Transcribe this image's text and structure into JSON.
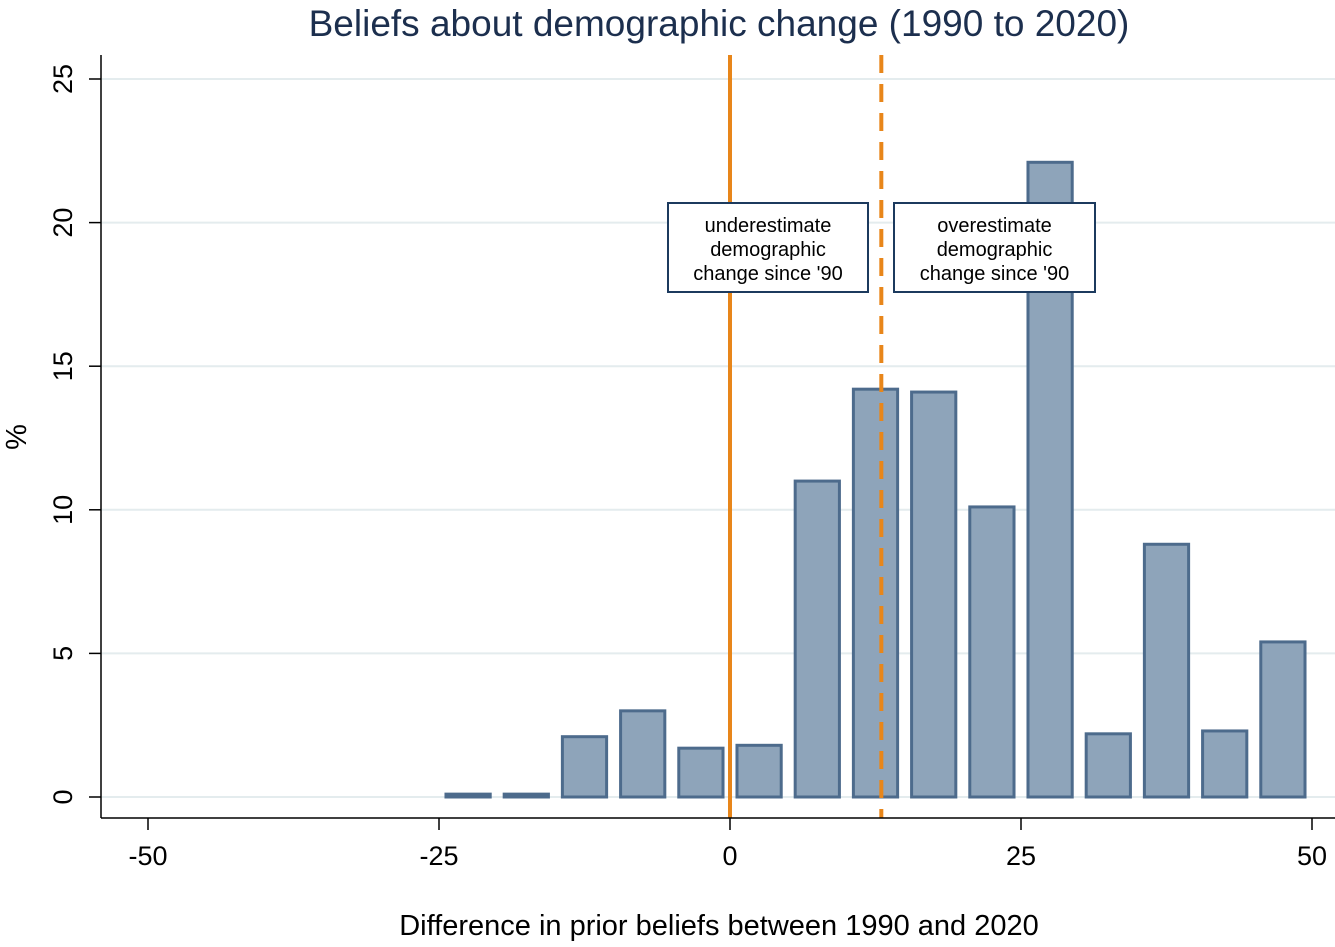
{
  "chart_data": {
    "type": "bar",
    "title": "Beliefs about demographic change (1990 to 2020)",
    "xlabel": "Difference in prior beliefs between 1990 and 2020",
    "ylabel": "%",
    "xlim": [
      -50,
      50
    ],
    "ylim": [
      0,
      25
    ],
    "xticks": [
      "-50",
      "-25",
      "0",
      "25",
      "50"
    ],
    "yticks": [
      "0",
      "5",
      "10",
      "15",
      "20",
      "25"
    ],
    "grid": true,
    "bar_width": 3.8,
    "bars": [
      {
        "x": -22.5,
        "value": 0.1
      },
      {
        "x": -17.5,
        "value": 0.1
      },
      {
        "x": -12.5,
        "value": 2.1
      },
      {
        "x": -7.5,
        "value": 3.0
      },
      {
        "x": -2.5,
        "value": 1.7
      },
      {
        "x": 2.5,
        "value": 1.8
      },
      {
        "x": 7.5,
        "value": 11.0
      },
      {
        "x": 12.5,
        "value": 14.2
      },
      {
        "x": 17.5,
        "value": 14.1
      },
      {
        "x": 22.5,
        "value": 10.1
      },
      {
        "x": 27.5,
        "value": 22.1
      },
      {
        "x": 32.5,
        "value": 2.2
      },
      {
        "x": 37.5,
        "value": 8.8
      },
      {
        "x": 42.5,
        "value": 2.3
      },
      {
        "x": 47.5,
        "value": 5.4
      }
    ],
    "reference_lines": [
      {
        "x": 0,
        "style": "solid",
        "color": "#e8861a"
      },
      {
        "x": 13,
        "style": "dashed",
        "color": "#e8861a"
      }
    ],
    "annotations": [
      {
        "lines": [
          "underestimate",
          "demographic",
          "change since '90"
        ]
      },
      {
        "lines": [
          "overestimate",
          "demographic",
          "change since '90"
        ]
      }
    ],
    "colors": {
      "bar_fill": "#8ea4ba",
      "bar_stroke": "#4d6b8c",
      "grid": "#e4ecee",
      "title": "#1c2f4e"
    }
  }
}
